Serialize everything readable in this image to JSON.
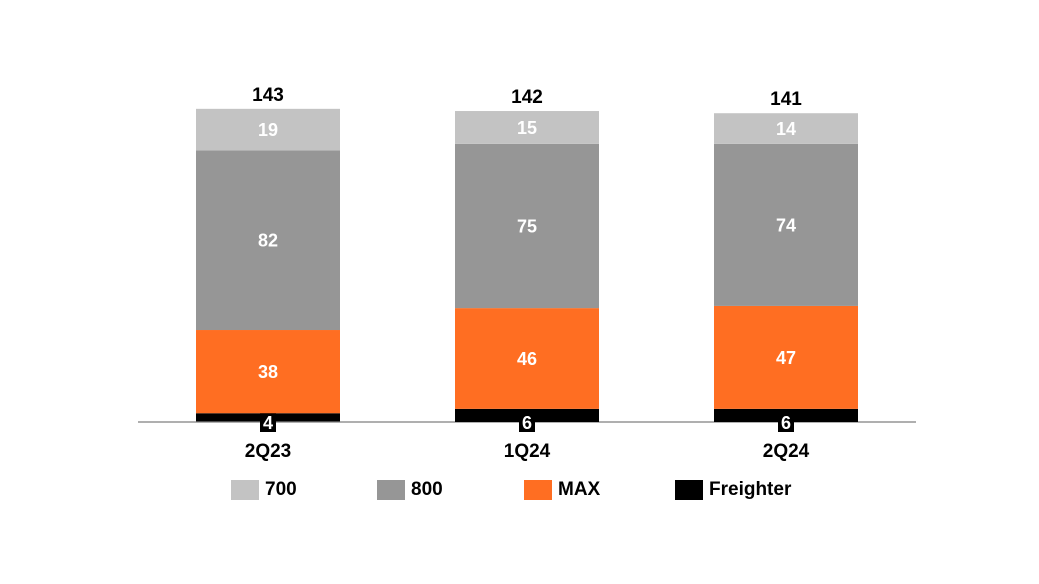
{
  "chart_data": {
    "type": "bar",
    "stacked": true,
    "title": "",
    "xlabel": "",
    "ylabel": "",
    "categories": [
      "2Q23",
      "1Q24",
      "2Q24"
    ],
    "totals": [
      143,
      142,
      141
    ],
    "series": [
      {
        "name": "Freighter",
        "values": [
          4,
          6,
          6
        ],
        "color": "#000000",
        "label_color": "#ffffff"
      },
      {
        "name": "MAX",
        "values": [
          38,
          46,
          47
        ],
        "color": "#ff6e22",
        "label_color": "#ffffff"
      },
      {
        "name": "800",
        "values": [
          82,
          75,
          74
        ],
        "color": "#969696",
        "label_color": "#ffffff"
      },
      {
        "name": "700",
        "values": [
          19,
          15,
          14
        ],
        "color": "#c3c3c3",
        "label_color": "#ffffff"
      }
    ],
    "legend_order": [
      "700",
      "800",
      "MAX",
      "Freighter"
    ],
    "grid": false,
    "legend_position": "bottom"
  }
}
